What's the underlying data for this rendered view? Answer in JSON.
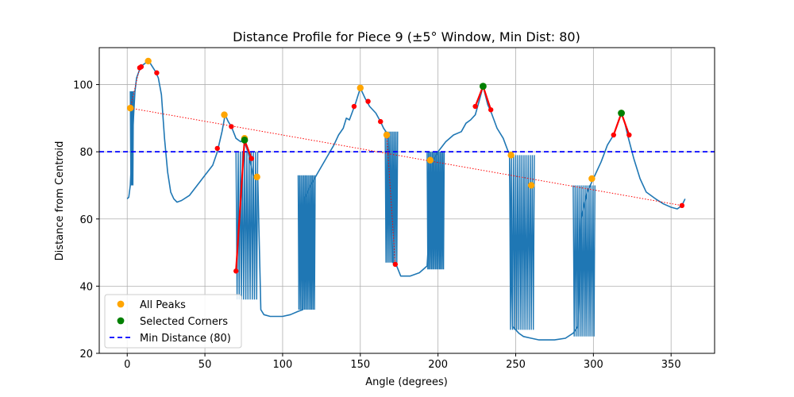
{
  "chart_data": {
    "type": "line",
    "title": "Distance Profile for Piece 9 (±5° Window, Min Dist: 80)",
    "xlabel": "Angle (degrees)",
    "ylabel": "Distance from Centroid",
    "xlim": [
      -18,
      378
    ],
    "ylim": [
      20,
      111
    ],
    "grid": true,
    "legend_position": "lower-left",
    "xticks": [
      0,
      50,
      100,
      150,
      200,
      250,
      300,
      350
    ],
    "yticks": [
      20,
      40,
      60,
      80,
      100
    ],
    "colors": {
      "profile": "#1f77b4",
      "all_peaks": "#ffa500",
      "selected": "#008000",
      "min_line": "#0000ff",
      "window": "#ff0000",
      "trend": "#ff0000"
    },
    "min_distance": 80,
    "profile": {
      "smooth": [
        [
          0,
          66
        ],
        [
          1,
          66.5
        ],
        [
          2,
          70
        ],
        [
          3,
          80
        ],
        [
          4,
          90
        ],
        [
          5,
          98
        ],
        [
          6,
          102
        ],
        [
          8,
          104.5
        ],
        [
          10,
          105.8
        ],
        [
          12,
          106.5
        ],
        [
          14,
          107
        ],
        [
          16,
          105.5
        ],
        [
          18,
          104
        ],
        [
          20,
          102
        ],
        [
          22,
          97
        ],
        [
          24,
          84
        ],
        [
          26,
          74
        ],
        [
          28,
          68
        ],
        [
          30,
          66
        ],
        [
          32,
          65
        ],
        [
          35,
          65.5
        ],
        [
          40,
          67
        ],
        [
          45,
          70
        ],
        [
          50,
          73
        ],
        [
          55,
          76
        ],
        [
          58,
          80
        ],
        [
          61,
          86
        ],
        [
          63,
          91
        ],
        [
          65,
          89
        ],
        [
          67,
          87.5
        ],
        [
          70,
          84
        ],
        [
          73,
          83
        ],
        [
          75,
          83.5
        ],
        [
          78,
          79.5
        ],
        [
          81,
          73
        ],
        [
          84,
          72.5
        ],
        [
          86,
          33
        ],
        [
          88,
          31.5
        ],
        [
          92,
          31
        ],
        [
          100,
          31
        ],
        [
          105,
          31.5
        ],
        [
          110,
          32.5
        ],
        [
          113,
          33
        ],
        [
          114,
          66
        ],
        [
          118,
          70
        ],
        [
          123,
          74
        ],
        [
          128,
          78
        ],
        [
          133,
          82
        ],
        [
          136,
          85
        ],
        [
          139,
          87
        ],
        [
          141,
          90
        ],
        [
          143,
          89.5
        ],
        [
          145,
          92
        ],
        [
          147,
          94.5
        ],
        [
          150,
          99
        ],
        [
          153,
          96
        ],
        [
          156,
          93.5
        ],
        [
          160,
          91.5
        ],
        [
          163,
          89
        ],
        [
          165,
          87
        ],
        [
          168,
          85
        ],
        [
          171,
          47
        ],
        [
          173,
          46.5
        ],
        [
          176,
          43
        ],
        [
          182,
          43
        ],
        [
          188,
          44
        ],
        [
          193,
          46
        ],
        [
          197,
          77.5
        ],
        [
          200,
          80
        ],
        [
          205,
          83
        ],
        [
          210,
          85
        ],
        [
          215,
          86
        ],
        [
          218,
          88.5
        ],
        [
          221,
          89.5
        ],
        [
          224,
          91
        ],
        [
          227,
          96
        ],
        [
          229,
          99.5
        ],
        [
          232,
          94
        ],
        [
          234,
          92
        ],
        [
          238,
          87
        ],
        [
          242,
          84
        ],
        [
          246,
          79
        ],
        [
          248,
          28
        ],
        [
          252,
          26
        ],
        [
          255,
          25
        ],
        [
          260,
          24.5
        ],
        [
          265,
          24
        ],
        [
          275,
          24
        ],
        [
          282,
          24.5
        ],
        [
          287,
          26
        ],
        [
          290,
          28
        ],
        [
          292,
          60
        ],
        [
          296,
          68
        ],
        [
          300,
          72
        ],
        [
          305,
          77
        ],
        [
          309,
          82
        ],
        [
          313,
          85
        ],
        [
          316,
          89
        ],
        [
          318,
          91.5
        ],
        [
          320,
          89
        ],
        [
          322,
          85
        ],
        [
          326,
          78
        ],
        [
          330,
          72
        ],
        [
          334,
          68
        ],
        [
          340,
          66
        ],
        [
          345,
          64.5
        ],
        [
          350,
          63.5
        ],
        [
          354,
          63
        ],
        [
          357,
          64
        ],
        [
          359,
          66
        ]
      ],
      "oscillations": [
        {
          "x": [
            2,
            4
          ],
          "low": 70,
          "high": 98,
          "cycles": 3
        },
        {
          "x": [
            70,
            84
          ],
          "low": 36,
          "high": 80,
          "cycles": 10
        },
        {
          "x": [
            110,
            121
          ],
          "low": 33,
          "high": 73,
          "cycles": 12
        },
        {
          "x": [
            166,
            174
          ],
          "low": 47,
          "high": 86,
          "cycles": 8
        },
        {
          "x": [
            193,
            204
          ],
          "low": 45,
          "high": 80,
          "cycles": 13
        },
        {
          "x": [
            246,
            262
          ],
          "low": 27,
          "high": 79,
          "cycles": 12
        },
        {
          "x": [
            287,
            301
          ],
          "low": 25,
          "high": 70,
          "cycles": 11
        }
      ]
    },
    "all_peaks": [
      [
        2,
        93
      ],
      [
        13.5,
        107
      ],
      [
        62.5,
        91
      ],
      [
        75.5,
        84
      ],
      [
        83.5,
        72.5
      ],
      [
        150,
        99
      ],
      [
        167,
        85
      ],
      [
        195,
        77.5
      ],
      [
        229,
        99.5
      ],
      [
        247,
        79
      ],
      [
        260,
        70
      ],
      [
        299,
        72
      ],
      [
        318,
        91.5
      ]
    ],
    "selected_corners": [
      [
        75.5,
        83.5
      ],
      [
        229,
        99.5
      ],
      [
        318,
        91.5
      ]
    ],
    "window_points": [
      [
        8,
        105
      ],
      [
        9,
        105.3
      ],
      [
        19,
        103.5
      ],
      [
        58,
        81
      ],
      [
        67,
        87.5
      ],
      [
        80,
        78
      ],
      [
        70,
        44.5
      ],
      [
        146,
        93.5
      ],
      [
        155,
        95
      ],
      [
        163,
        89
      ],
      [
        172.5,
        46.5
      ],
      [
        224,
        93.5
      ],
      [
        234,
        92.5
      ],
      [
        313,
        85
      ],
      [
        323,
        85
      ],
      [
        357,
        64
      ]
    ],
    "red_window_lines": [
      [
        [
          70,
          44.5
        ],
        [
          75.5,
          83.5
        ],
        [
          80,
          78
        ]
      ],
      [
        [
          224,
          93.5
        ],
        [
          229,
          99.5
        ],
        [
          234,
          92.5
        ]
      ],
      [
        [
          313,
          85
        ],
        [
          318,
          91.5
        ],
        [
          323,
          85
        ]
      ]
    ],
    "trend_line": [
      [
        2,
        93
      ],
      [
        357,
        64
      ]
    ],
    "trend_branch_lines": [
      [
        [
          2,
          93
        ],
        [
          8,
          105
        ]
      ],
      [
        [
          167,
          85
        ],
        [
          172.5,
          46.5
        ]
      ]
    ],
    "legend": [
      {
        "label": "All Peaks",
        "kind": "marker",
        "color": "#ffa500"
      },
      {
        "label": "Selected Corners",
        "kind": "marker",
        "color": "#008000"
      },
      {
        "label": "Min Distance (80)",
        "kind": "dashed",
        "color": "#0000ff"
      }
    ]
  }
}
